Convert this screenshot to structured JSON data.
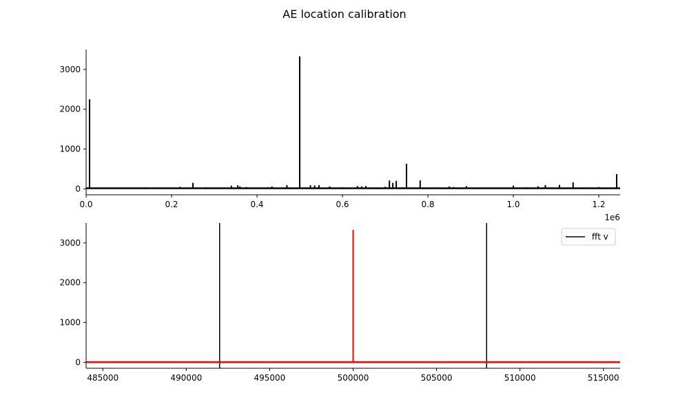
{
  "figure": {
    "title": "AE location calibration"
  },
  "chart_data": [
    {
      "type": "line",
      "xlim": [
        0,
        1250000
      ],
      "ylim": [
        -150,
        3500
      ],
      "x_ticks": [
        0,
        200000,
        400000,
        600000,
        800000,
        1000000,
        1200000
      ],
      "x_tick_labels": [
        "0.0",
        "0.2",
        "0.4",
        "0.6",
        "0.8",
        "1.0",
        "1.2"
      ],
      "x_offset_label": "1e6",
      "y_ticks": [
        0,
        1000,
        2000,
        3000
      ],
      "y_tick_labels": [
        "0",
        "1000",
        "2000",
        "3000"
      ],
      "grid": false,
      "series": [
        {
          "color": "#000000",
          "baseline": 15,
          "peaks": [
            [
              8000,
              2250
            ],
            [
              55000,
              35
            ],
            [
              110000,
              25
            ],
            [
              140000,
              40
            ],
            [
              180000,
              30
            ],
            [
              205000,
              35
            ],
            [
              220000,
              50
            ],
            [
              250000,
              150
            ],
            [
              280000,
              40
            ],
            [
              300000,
              25
            ],
            [
              340000,
              80
            ],
            [
              355000,
              90
            ],
            [
              360000,
              60
            ],
            [
              375000,
              45
            ],
            [
              395000,
              30
            ],
            [
              425000,
              40
            ],
            [
              435000,
              60
            ],
            [
              470000,
              95
            ],
            [
              500000,
              3330
            ],
            [
              525000,
              90
            ],
            [
              535000,
              85
            ],
            [
              545000,
              95
            ],
            [
              570000,
              60
            ],
            [
              600000,
              40
            ],
            [
              635000,
              70
            ],
            [
              645000,
              60
            ],
            [
              655000,
              70
            ],
            [
              680000,
              35
            ],
            [
              700000,
              50
            ],
            [
              710000,
              210
            ],
            [
              718000,
              150
            ],
            [
              726000,
              200
            ],
            [
              740000,
              40
            ],
            [
              750000,
              630
            ],
            [
              765000,
              30
            ],
            [
              782000,
              210
            ],
            [
              800000,
              30
            ],
            [
              825000,
              35
            ],
            [
              850000,
              60
            ],
            [
              860000,
              45
            ],
            [
              890000,
              70
            ],
            [
              910000,
              35
            ],
            [
              940000,
              25
            ],
            [
              970000,
              30
            ],
            [
              1000000,
              80
            ],
            [
              1030000,
              40
            ],
            [
              1058000,
              65
            ],
            [
              1075000,
              95
            ],
            [
              1090000,
              30
            ],
            [
              1108000,
              100
            ],
            [
              1140000,
              165
            ],
            [
              1160000,
              35
            ],
            [
              1200000,
              45
            ],
            [
              1235000,
              25
            ],
            [
              1242000,
              370
            ]
          ]
        }
      ]
    },
    {
      "type": "line",
      "xlim": [
        484000,
        516000
      ],
      "ylim": [
        -150,
        3500
      ],
      "x_ticks": [
        485000,
        490000,
        495000,
        500000,
        505000,
        510000,
        515000
      ],
      "x_tick_labels": [
        "485000",
        "490000",
        "495000",
        "500000",
        "505000",
        "510000",
        "515000"
      ],
      "y_ticks": [
        0,
        1000,
        2000,
        3000
      ],
      "y_tick_labels": [
        "0",
        "1000",
        "2000",
        "3000"
      ],
      "grid": false,
      "legend": {
        "position": "top-right",
        "entries": [
          {
            "label": "fft v",
            "color": "#000000"
          }
        ]
      },
      "vlines": [
        {
          "x": 492000,
          "color": "#000000"
        },
        {
          "x": 508000,
          "color": "#000000"
        }
      ],
      "series": [
        {
          "name": "fft v",
          "color": "#ff0000",
          "baseline": 5,
          "peaks": [
            [
              500000,
              3330
            ]
          ]
        }
      ]
    }
  ]
}
